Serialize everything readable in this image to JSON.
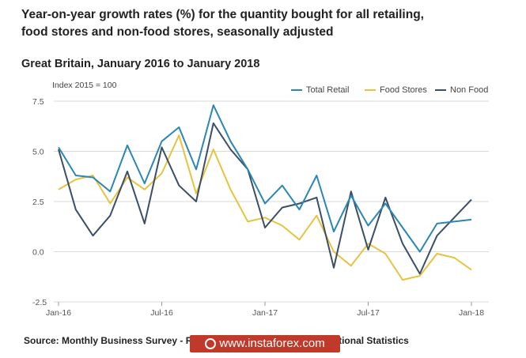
{
  "title_line1": "Year-on-year growth rates (%) for the quantity bought for all retailing,",
  "title_line2": "food stores and non-food stores, seasonally adjusted",
  "subtitle": "Great Britain, January 2016 to January 2018",
  "index_note": "Index 2015 = 100",
  "source": "Source: Monthly Business Survey - Retail Sales Inquiry - Office for National Statistics",
  "watermark": "www.instaforex.com",
  "colors": {
    "total_retail": "#2a87b4",
    "food_stores": "#e7c340",
    "non_food": "#3a4f66",
    "grid": "#d9d9d9"
  },
  "chart_data": {
    "type": "line",
    "title": "Year-on-year growth rates (%) for the quantity bought for all retailing, food stores and non-food stores, seasonally adjusted",
    "xlabel": "",
    "ylabel": "",
    "ylim": [
      -2.5,
      7.5
    ],
    "yticks": [
      "7.5",
      "5.0",
      "2.5",
      "0.0",
      "-2.5"
    ],
    "ytick_values": [
      7.5,
      5.0,
      2.5,
      0.0,
      -2.5
    ],
    "xtick_labels": [
      "Jan-16",
      "Jul-16",
      "Jan-17",
      "Jul-17",
      "Jan-18"
    ],
    "xtick_index": [
      0,
      6,
      12,
      18,
      24
    ],
    "x": [
      "Jan-16",
      "Feb-16",
      "Mar-16",
      "Apr-16",
      "May-16",
      "Jun-16",
      "Jul-16",
      "Aug-16",
      "Sep-16",
      "Oct-16",
      "Nov-16",
      "Dec-16",
      "Jan-17",
      "Feb-17",
      "Mar-17",
      "Apr-17",
      "May-17",
      "Jun-17",
      "Jul-17",
      "Aug-17",
      "Sep-17",
      "Oct-17",
      "Nov-17",
      "Dec-17",
      "Jan-18"
    ],
    "legend_position": "top-right",
    "grid": "horizontal",
    "series": [
      {
        "name": "Total Retail",
        "color": "#2a87b4",
        "values": [
          5.2,
          3.8,
          3.7,
          3.0,
          5.3,
          3.4,
          5.5,
          6.2,
          4.1,
          7.3,
          5.5,
          4.1,
          2.4,
          3.3,
          2.1,
          3.8,
          1.0,
          2.8,
          1.3,
          2.4,
          1.2,
          0.0,
          1.4,
          1.5,
          1.6
        ]
      },
      {
        "name": "Food Stores",
        "color": "#e7c340",
        "values": [
          3.1,
          3.6,
          3.8,
          2.4,
          3.7,
          3.1,
          3.9,
          5.8,
          2.9,
          5.1,
          3.1,
          1.5,
          1.7,
          1.3,
          0.6,
          1.8,
          0.0,
          -0.7,
          0.4,
          -0.1,
          -1.4,
          -1.2,
          -0.1,
          -0.3,
          -0.9
        ]
      },
      {
        "name": "Non Food",
        "color": "#3a4f66",
        "values": [
          5.1,
          2.1,
          0.8,
          1.8,
          4.0,
          1.4,
          5.2,
          3.3,
          2.5,
          6.4,
          5.1,
          4.1,
          1.2,
          2.2,
          2.4,
          2.7,
          -0.8,
          3.0,
          0.1,
          2.7,
          0.4,
          -1.1,
          0.8,
          1.7,
          2.6
        ]
      }
    ]
  }
}
